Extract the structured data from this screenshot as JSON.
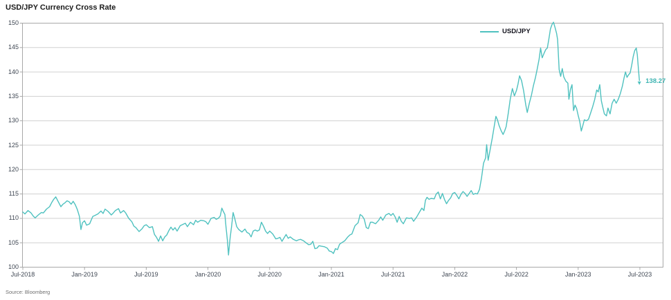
{
  "title": "USD/JPY Currency Cross Rate",
  "legend": {
    "label": "USD/JPY"
  },
  "footer": {
    "source": "Source: Bloomberg"
  },
  "colors": {
    "line": "#4ec1bf",
    "value_label": "#3db4b2",
    "frame": "#a8a8a8",
    "grid": "#d0d0d0",
    "axis_text": "#3e4652",
    "title_text": "#1b1b1b",
    "legend_text": "#15151f"
  },
  "chart_data": {
    "type": "line",
    "title": "USD/JPY Currency Cross Rate",
    "xlabel": "",
    "ylabel": "",
    "x_unit": "months since Jul-2018 tick",
    "x_range": [
      0,
      60
    ],
    "ylim": [
      100,
      150
    ],
    "y_ticks": [
      100,
      105,
      110,
      115,
      120,
      125,
      130,
      135,
      140,
      145,
      150
    ],
    "grid": "horizontal-only",
    "legend_position": "top-right-inside",
    "last_value_label": "138.27",
    "x_ticks": [
      {
        "label": "Jul-2018",
        "t": 0
      },
      {
        "label": "Jan-2019",
        "t": 6
      },
      {
        "label": "Jul-2019",
        "t": 12
      },
      {
        "label": "Jan-2020",
        "t": 18
      },
      {
        "label": "Jul-2020",
        "t": 24
      },
      {
        "label": "Jan-2021",
        "t": 30
      },
      {
        "label": "Jul-2021",
        "t": 36
      },
      {
        "label": "Jan-2022",
        "t": 42
      },
      {
        "label": "Jul-2022",
        "t": 48
      },
      {
        "label": "Jan-2023",
        "t": 54
      },
      {
        "label": "Jul-2023",
        "t": 60
      }
    ],
    "series": [
      {
        "name": "USD/JPY",
        "points": [
          [
            0.0,
            111.3
          ],
          [
            0.2,
            110.9
          ],
          [
            0.5,
            111.6
          ],
          [
            0.8,
            111.1
          ],
          [
            1.0,
            110.5
          ],
          [
            1.2,
            110.1
          ],
          [
            1.5,
            110.7
          ],
          [
            1.8,
            111.2
          ],
          [
            2.0,
            111.1
          ],
          [
            2.3,
            111.9
          ],
          [
            2.6,
            112.4
          ],
          [
            2.8,
            113.2
          ],
          [
            3.0,
            113.9
          ],
          [
            3.2,
            114.4
          ],
          [
            3.5,
            113.2
          ],
          [
            3.7,
            112.4
          ],
          [
            3.9,
            112.9
          ],
          [
            4.1,
            113.2
          ],
          [
            4.3,
            113.6
          ],
          [
            4.5,
            113.4
          ],
          [
            4.7,
            112.9
          ],
          [
            4.9,
            113.5
          ],
          [
            5.1,
            112.8
          ],
          [
            5.3,
            111.8
          ],
          [
            5.5,
            110.4
          ],
          [
            5.65,
            107.7
          ],
          [
            5.8,
            109.1
          ],
          [
            6.0,
            109.5
          ],
          [
            6.2,
            108.6
          ],
          [
            6.5,
            108.9
          ],
          [
            6.8,
            110.4
          ],
          [
            7.0,
            110.6
          ],
          [
            7.3,
            110.9
          ],
          [
            7.6,
            111.5
          ],
          [
            7.8,
            111.0
          ],
          [
            8.0,
            111.9
          ],
          [
            8.3,
            111.4
          ],
          [
            8.6,
            110.7
          ],
          [
            8.8,
            111.1
          ],
          [
            9.0,
            111.6
          ],
          [
            9.3,
            112.0
          ],
          [
            9.5,
            111.1
          ],
          [
            9.8,
            111.6
          ],
          [
            10.0,
            111.1
          ],
          [
            10.3,
            110.0
          ],
          [
            10.6,
            109.3
          ],
          [
            10.8,
            108.4
          ],
          [
            11.0,
            108.1
          ],
          [
            11.3,
            107.3
          ],
          [
            11.6,
            107.9
          ],
          [
            11.8,
            108.5
          ],
          [
            12.0,
            108.7
          ],
          [
            12.3,
            108.1
          ],
          [
            12.6,
            108.3
          ],
          [
            12.8,
            106.7
          ],
          [
            13.0,
            106.1
          ],
          [
            13.2,
            105.3
          ],
          [
            13.4,
            106.4
          ],
          [
            13.6,
            105.4
          ],
          [
            13.8,
            106.2
          ],
          [
            14.0,
            106.6
          ],
          [
            14.2,
            107.5
          ],
          [
            14.4,
            108.2
          ],
          [
            14.6,
            107.6
          ],
          [
            14.8,
            108.1
          ],
          [
            15.0,
            107.4
          ],
          [
            15.3,
            108.5
          ],
          [
            15.6,
            108.8
          ],
          [
            15.8,
            109.0
          ],
          [
            16.0,
            108.3
          ],
          [
            16.3,
            109.2
          ],
          [
            16.6,
            108.7
          ],
          [
            16.8,
            109.6
          ],
          [
            17.0,
            109.2
          ],
          [
            17.3,
            109.6
          ],
          [
            17.6,
            109.5
          ],
          [
            17.8,
            109.3
          ],
          [
            18.0,
            108.8
          ],
          [
            18.3,
            110.0
          ],
          [
            18.6,
            110.2
          ],
          [
            18.8,
            109.8
          ],
          [
            19.0,
            110.0
          ],
          [
            19.2,
            110.5
          ],
          [
            19.35,
            112.1
          ],
          [
            19.5,
            111.4
          ],
          [
            19.65,
            110.8
          ],
          [
            19.75,
            108.4
          ],
          [
            19.9,
            105.4
          ],
          [
            20.0,
            102.5
          ],
          [
            20.15,
            105.9
          ],
          [
            20.3,
            108.4
          ],
          [
            20.45,
            111.2
          ],
          [
            20.6,
            110.0
          ],
          [
            20.8,
            108.3
          ],
          [
            21.0,
            107.7
          ],
          [
            21.3,
            107.2
          ],
          [
            21.6,
            107.8
          ],
          [
            21.8,
            107.1
          ],
          [
            22.0,
            106.9
          ],
          [
            22.2,
            106.2
          ],
          [
            22.4,
            107.4
          ],
          [
            22.6,
            107.6
          ],
          [
            22.8,
            107.4
          ],
          [
            23.0,
            107.6
          ],
          [
            23.2,
            109.2
          ],
          [
            23.4,
            108.4
          ],
          [
            23.6,
            107.4
          ],
          [
            23.8,
            106.9
          ],
          [
            24.0,
            107.4
          ],
          [
            24.3,
            106.8
          ],
          [
            24.6,
            105.8
          ],
          [
            24.8,
            105.9
          ],
          [
            25.0,
            106.1
          ],
          [
            25.2,
            105.3
          ],
          [
            25.4,
            106.0
          ],
          [
            25.6,
            106.7
          ],
          [
            25.8,
            105.9
          ],
          [
            26.0,
            106.2
          ],
          [
            26.3,
            105.7
          ],
          [
            26.6,
            105.4
          ],
          [
            26.8,
            105.6
          ],
          [
            27.0,
            105.7
          ],
          [
            27.3,
            105.4
          ],
          [
            27.6,
            104.9
          ],
          [
            27.8,
            104.6
          ],
          [
            28.0,
            104.7
          ],
          [
            28.2,
            105.3
          ],
          [
            28.4,
            103.8
          ],
          [
            28.6,
            103.9
          ],
          [
            28.8,
            104.4
          ],
          [
            29.0,
            104.3
          ],
          [
            29.3,
            104.2
          ],
          [
            29.6,
            103.9
          ],
          [
            29.8,
            103.3
          ],
          [
            30.0,
            103.2
          ],
          [
            30.2,
            102.8
          ],
          [
            30.4,
            103.8
          ],
          [
            30.6,
            103.6
          ],
          [
            30.8,
            104.7
          ],
          [
            31.0,
            105.0
          ],
          [
            31.3,
            105.4
          ],
          [
            31.6,
            106.2
          ],
          [
            31.8,
            106.6
          ],
          [
            32.0,
            106.8
          ],
          [
            32.3,
            108.5
          ],
          [
            32.6,
            109.1
          ],
          [
            32.8,
            110.8
          ],
          [
            33.0,
            110.5
          ],
          [
            33.2,
            109.8
          ],
          [
            33.4,
            108.1
          ],
          [
            33.6,
            107.9
          ],
          [
            33.8,
            109.2
          ],
          [
            34.0,
            109.2
          ],
          [
            34.3,
            108.9
          ],
          [
            34.6,
            109.6
          ],
          [
            34.8,
            110.3
          ],
          [
            35.0,
            109.6
          ],
          [
            35.3,
            110.7
          ],
          [
            35.6,
            111.0
          ],
          [
            35.8,
            110.6
          ],
          [
            36.0,
            111.0
          ],
          [
            36.2,
            110.3
          ],
          [
            36.4,
            109.2
          ],
          [
            36.6,
            110.4
          ],
          [
            36.8,
            109.4
          ],
          [
            37.0,
            108.9
          ],
          [
            37.3,
            110.1
          ],
          [
            37.6,
            110.0
          ],
          [
            37.8,
            110.1
          ],
          [
            38.0,
            109.4
          ],
          [
            38.3,
            110.3
          ],
          [
            38.6,
            111.4
          ],
          [
            38.8,
            112.1
          ],
          [
            39.0,
            111.6
          ],
          [
            39.15,
            113.7
          ],
          [
            39.3,
            114.3
          ],
          [
            39.5,
            113.9
          ],
          [
            39.7,
            114.1
          ],
          [
            40.0,
            114.0
          ],
          [
            40.2,
            115.0
          ],
          [
            40.4,
            115.4
          ],
          [
            40.6,
            114.0
          ],
          [
            40.8,
            115.1
          ],
          [
            41.0,
            113.9
          ],
          [
            41.2,
            113.0
          ],
          [
            41.4,
            113.7
          ],
          [
            41.6,
            114.2
          ],
          [
            41.8,
            115.1
          ],
          [
            42.0,
            115.3
          ],
          [
            42.2,
            114.7
          ],
          [
            42.4,
            114.0
          ],
          [
            42.6,
            114.9
          ],
          [
            42.8,
            115.5
          ],
          [
            43.0,
            115.1
          ],
          [
            43.2,
            114.5
          ],
          [
            43.4,
            115.1
          ],
          [
            43.6,
            115.7
          ],
          [
            43.8,
            114.9
          ],
          [
            44.0,
            115.1
          ],
          [
            44.2,
            115.0
          ],
          [
            44.4,
            115.9
          ],
          [
            44.6,
            118.3
          ],
          [
            44.8,
            121.3
          ],
          [
            45.0,
            122.4
          ],
          [
            45.1,
            125.1
          ],
          [
            45.25,
            121.9
          ],
          [
            45.45,
            124.2
          ],
          [
            45.65,
            126.5
          ],
          [
            45.85,
            129.0
          ],
          [
            46.0,
            130.9
          ],
          [
            46.15,
            130.2
          ],
          [
            46.3,
            129.1
          ],
          [
            46.5,
            128.0
          ],
          [
            46.7,
            127.2
          ],
          [
            46.85,
            127.9
          ],
          [
            47.0,
            128.8
          ],
          [
            47.2,
            131.5
          ],
          [
            47.4,
            134.5
          ],
          [
            47.6,
            136.6
          ],
          [
            47.8,
            135.1
          ],
          [
            48.0,
            136.2
          ],
          [
            48.15,
            137.5
          ],
          [
            48.3,
            139.2
          ],
          [
            48.5,
            138.2
          ],
          [
            48.7,
            136.1
          ],
          [
            48.9,
            133.3
          ],
          [
            49.05,
            131.7
          ],
          [
            49.25,
            133.6
          ],
          [
            49.45,
            135.2
          ],
          [
            49.65,
            137.2
          ],
          [
            49.85,
            138.9
          ],
          [
            50.0,
            140.4
          ],
          [
            50.2,
            142.6
          ],
          [
            50.35,
            144.9
          ],
          [
            50.5,
            142.9
          ],
          [
            50.7,
            143.9
          ],
          [
            50.85,
            144.6
          ],
          [
            51.0,
            144.9
          ],
          [
            51.15,
            146.7
          ],
          [
            51.3,
            148.8
          ],
          [
            51.45,
            149.7
          ],
          [
            51.6,
            150.2
          ],
          [
            51.75,
            149.1
          ],
          [
            51.9,
            147.9
          ],
          [
            52.0,
            146.6
          ],
          [
            52.15,
            140.5
          ],
          [
            52.3,
            139.1
          ],
          [
            52.45,
            140.7
          ],
          [
            52.6,
            139.0
          ],
          [
            52.8,
            138.1
          ],
          [
            53.0,
            137.7
          ],
          [
            53.1,
            134.4
          ],
          [
            53.25,
            136.4
          ],
          [
            53.4,
            137.4
          ],
          [
            53.55,
            132.1
          ],
          [
            53.7,
            133.2
          ],
          [
            53.85,
            132.5
          ],
          [
            54.0,
            131.1
          ],
          [
            54.15,
            129.9
          ],
          [
            54.3,
            127.9
          ],
          [
            54.45,
            129.0
          ],
          [
            54.6,
            130.2
          ],
          [
            54.8,
            130.0
          ],
          [
            55.0,
            130.3
          ],
          [
            55.2,
            131.5
          ],
          [
            55.4,
            132.8
          ],
          [
            55.6,
            134.3
          ],
          [
            55.8,
            136.3
          ],
          [
            55.95,
            135.9
          ],
          [
            56.1,
            137.4
          ],
          [
            56.25,
            134.1
          ],
          [
            56.4,
            132.7
          ],
          [
            56.55,
            131.4
          ],
          [
            56.75,
            131.0
          ],
          [
            56.9,
            132.6
          ],
          [
            57.1,
            131.4
          ],
          [
            57.3,
            133.6
          ],
          [
            57.5,
            134.4
          ],
          [
            57.7,
            133.6
          ],
          [
            57.9,
            134.4
          ],
          [
            58.1,
            135.6
          ],
          [
            58.3,
            137.1
          ],
          [
            58.45,
            138.7
          ],
          [
            58.6,
            140.0
          ],
          [
            58.75,
            138.9
          ],
          [
            58.9,
            139.4
          ],
          [
            59.05,
            139.8
          ],
          [
            59.2,
            141.3
          ],
          [
            59.35,
            143.1
          ],
          [
            59.5,
            144.4
          ],
          [
            59.65,
            144.9
          ],
          [
            59.75,
            143.5
          ],
          [
            59.85,
            140.8
          ],
          [
            59.95,
            138.27
          ]
        ]
      }
    ]
  }
}
